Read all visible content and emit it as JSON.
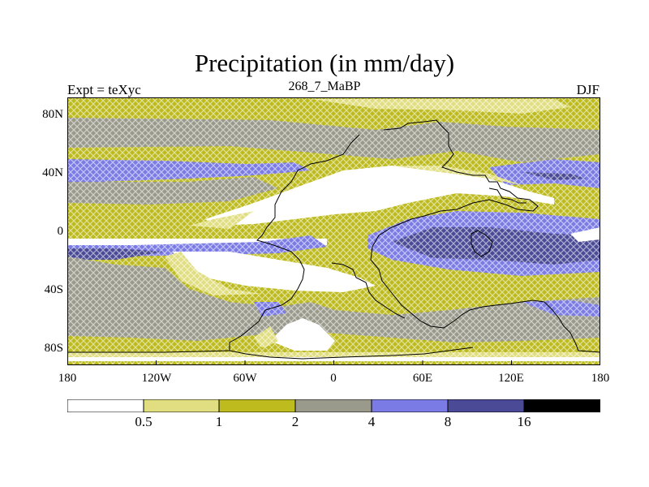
{
  "title": "Precipitation (in mm/day)",
  "left_label": "Expt = teXyc",
  "center_label": "268_7_MaBP",
  "right_label": "DJF",
  "lat_ticks": [
    "80N",
    "40N",
    "0",
    "40S",
    "80S"
  ],
  "lon_ticks": [
    "180",
    "120W",
    "60W",
    "0",
    "60E",
    "120E",
    "180"
  ],
  "colorbar": {
    "labels": [
      "0.5",
      "1",
      "2",
      "4",
      "8",
      "16"
    ],
    "colors": [
      "#ffffff",
      "#e0de80",
      "#bdbb1e",
      "#9a9a8c",
      "#7b7be6",
      "#4a4a96",
      "#000000"
    ]
  },
  "colors": {
    "lt1": "#ffffff",
    "c05_1": "#e0de80",
    "c1_2": "#bdbb1e",
    "c2_4": "#9a9a8c",
    "c4_8": "#7b7be6",
    "c8_16": "#4a4a96",
    "gt16": "#000000"
  }
}
